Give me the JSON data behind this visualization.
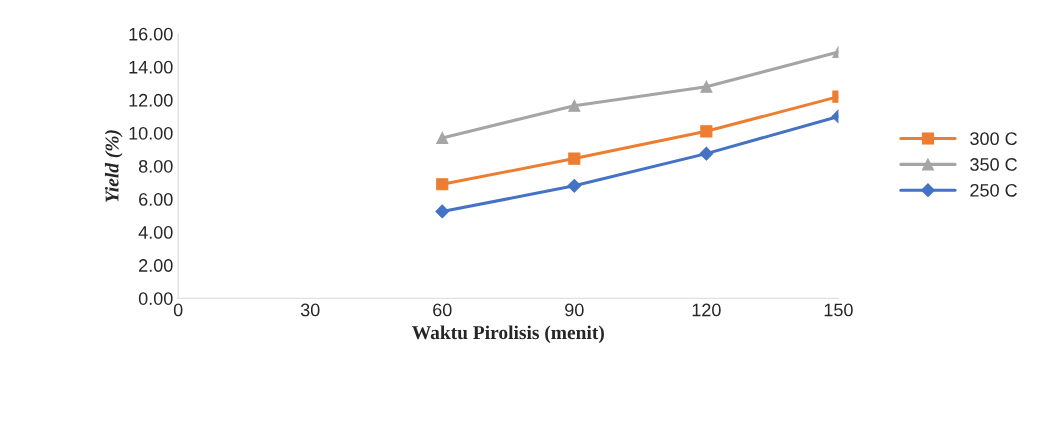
{
  "chart_data": {
    "type": "line",
    "xlabel": "Waktu Pirolisis (menit)",
    "ylabel": "Yield (%)",
    "x": [
      60,
      90,
      120,
      150
    ],
    "series": [
      {
        "name": "300 C",
        "color": "#ed7d31",
        "marker": "square",
        "values": [
          6.9,
          8.45,
          10.1,
          12.2
        ]
      },
      {
        "name": "350 C",
        "color": "#a5a5a5",
        "marker": "triangle",
        "values": [
          9.7,
          11.65,
          12.8,
          14.9
        ]
      },
      {
        "name": "250 C",
        "color": "#4472c4",
        "marker": "diamond",
        "values": [
          5.25,
          6.8,
          8.75,
          11.0
        ]
      }
    ],
    "xlim": [
      0,
      150
    ],
    "xticks": [
      0,
      30,
      60,
      90,
      120,
      150
    ],
    "ylim": [
      0,
      16
    ],
    "yticks": [
      {
        "value": 0,
        "label": "0.00"
      },
      {
        "value": 2,
        "label": "2.00"
      },
      {
        "value": 4,
        "label": "4.00"
      },
      {
        "value": 6,
        "label": "6.00"
      },
      {
        "value": 8,
        "label": "8.00"
      },
      {
        "value": 10,
        "label": "10.00"
      },
      {
        "value": 12,
        "label": "12.00"
      },
      {
        "value": 14,
        "label": "14.00"
      },
      {
        "value": 16,
        "label": "16.00"
      }
    ],
    "grid": false,
    "legend": "right",
    "line_style": "solid"
  }
}
